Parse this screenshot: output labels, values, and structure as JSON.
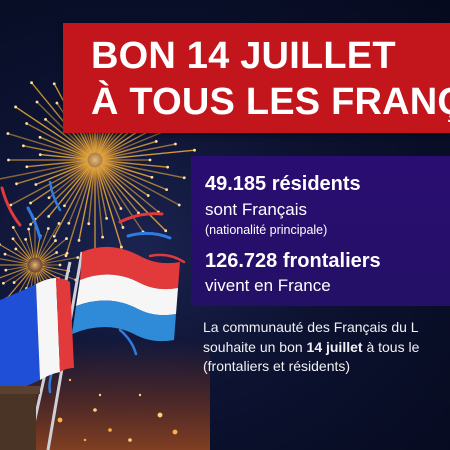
{
  "banner": {
    "line1": "BON 14 JUILLET",
    "line2": "À TOUS LES FRANÇA"
  },
  "stats": {
    "residents_number": "49.185 résidents",
    "residents_text": "sont Français",
    "residents_note": "(nationalité principale)",
    "frontaliers_number": "126.728 frontaliers",
    "frontaliers_text": "vivent en France"
  },
  "message": {
    "line1": "La communauté des Français du L",
    "line2_before": "souhaite un bon ",
    "line2_bold": "14 juillet",
    "line2_after": " à tous le",
    "line3": "(frontaliers et résidents)"
  },
  "colors": {
    "banner_red": "#c3161c",
    "panel_purple": "#2a0d72",
    "night_sky": "#0c1230",
    "firework_gold": "#e8a93a",
    "flag_red": "#e23a3a",
    "flag_blue_fr": "#1f4fd6",
    "flag_blue_lu": "#2f8bd8"
  },
  "icons": {
    "fireworks": "fireworks-illustration",
    "flag_france": "flag-france-icon",
    "flag_luxembourg": "flag-luxembourg-icon"
  }
}
